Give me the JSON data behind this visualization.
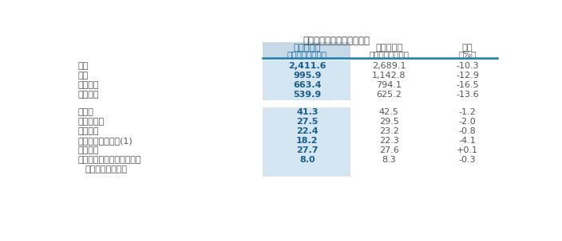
{
  "title": "截至十二月三十一日止年度",
  "col_headers": [
    [
      "二零一六年",
      "（人民幣百萬元）"
    ],
    [
      "二零一五年",
      "（人民幣百萬元）"
    ],
    [
      "變幅",
      "（%）"
    ]
  ],
  "section1_rows": [
    [
      "收入",
      "2,411.6",
      "2,689.1",
      "-10.3"
    ],
    [
      "毛利",
      "995.9",
      "1,142.8",
      "-12.9"
    ],
    [
      "經營利潤",
      "663.4",
      "794.1",
      "-16.5"
    ],
    [
      "年度利潤",
      "539.9",
      "625.2",
      "-13.6"
    ]
  ],
  "section2_rows": [
    [
      "毛利率",
      "41.3",
      "42.5",
      "-1.2"
    ],
    [
      "經營利潤率",
      "27.5",
      "29.5",
      "-2.0"
    ],
    [
      "淨利潤率",
      "22.4",
      "23.2",
      "-0.8"
    ],
    [
      "平均股東權益回報(1)",
      "18.2",
      "22.3",
      "-4.1"
    ],
    [
      "有效稅率",
      "27.7",
      "27.6",
      "+0.1"
    ],
    [
      "廣告及宣傳開支及裝修補貼",
      "8.0",
      "8.3",
      "-0.3"
    ],
    [
      "（佔收入百分比）",
      "",
      "",
      ""
    ]
  ],
  "highlight_col_bg": "#c5d9e8",
  "highlight_col_bg2": "#d4e6f1",
  "header_text_color": "#1a6b9a",
  "body_bold_color": "#1a5e8a",
  "body_normal_color": "#555555",
  "bg_color": "#ffffff",
  "divider_color": "#1a7aaa",
  "title_color": "#444444"
}
